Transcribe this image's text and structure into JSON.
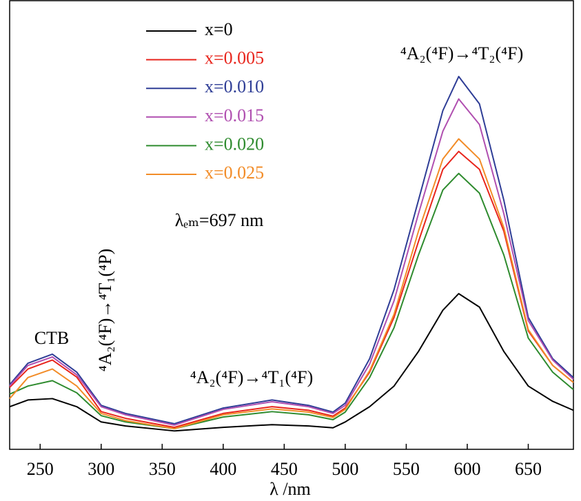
{
  "chart_data": {
    "type": "line",
    "x": [
      225,
      240,
      260,
      280,
      300,
      320,
      360,
      400,
      440,
      470,
      490,
      500,
      520,
      540,
      560,
      580,
      593,
      610,
      630,
      650,
      670,
      687
    ],
    "series": [
      {
        "name": "x=0",
        "color": "#000000",
        "values": [
          9.5,
          11,
          11.3,
          9.5,
          6.1,
          5.2,
          4.1,
          4.9,
          5.5,
          5.2,
          4.8,
          6.1,
          9.5,
          14.1,
          21.8,
          31,
          34.7,
          31.7,
          21.8,
          14.1,
          10.7,
          8.7
        ]
      },
      {
        "name": "x=0.005",
        "color": "#e8251c",
        "values": [
          13.8,
          17.9,
          19.9,
          16.1,
          8.4,
          6.9,
          4.9,
          8,
          9.5,
          8.7,
          7.4,
          9.2,
          17.2,
          29.4,
          46.3,
          62.4,
          66.4,
          62.4,
          48.6,
          26.4,
          18.7,
          14.9
        ]
      },
      {
        "name": "x=0.010",
        "color": "#2e3d96",
        "values": [
          14.4,
          19.2,
          21.2,
          17.2,
          9.8,
          8,
          5.7,
          9.2,
          11,
          9.8,
          8.3,
          10.3,
          20.2,
          35.6,
          55.5,
          75.5,
          83.1,
          77,
          55.5,
          29.4,
          20.2,
          16
        ]
      },
      {
        "name": "x=0.015",
        "color": "#b04fb0",
        "values": [
          14.1,
          18.7,
          20.6,
          16.6,
          9.5,
          7.7,
          5.4,
          8.9,
          10.6,
          9.5,
          8,
          9.8,
          19,
          33.1,
          52.5,
          70.9,
          78.1,
          72.4,
          52.5,
          28.7,
          19.9,
          15.6
        ]
      },
      {
        "name": "x=0.020",
        "color": "#2e8b2e",
        "values": [
          12.3,
          14.1,
          15.3,
          12.6,
          7.5,
          6.1,
          4.6,
          7.2,
          8.4,
          7.7,
          6.6,
          8.3,
          16,
          27.1,
          43.3,
          57.8,
          61.5,
          57.1,
          43.3,
          24.8,
          17.2,
          13.3
        ]
      },
      {
        "name": "x=0.025",
        "color": "#f28c28",
        "values": [
          11.3,
          16,
          17.9,
          14.1,
          8,
          6.4,
          4.6,
          7.7,
          9,
          8.3,
          7.1,
          8.9,
          17.5,
          30.1,
          48.6,
          64.7,
          69.2,
          64.7,
          49.4,
          26.7,
          18.7,
          14.9
        ]
      }
    ],
    "xlim": [
      225,
      687
    ],
    "ylim": [
      0,
      100
    ],
    "xticks": [
      250,
      300,
      350,
      400,
      450,
      500,
      550,
      600,
      650
    ],
    "x_label": "λ /nm",
    "annotations": [
      "⁴A₂(⁴F)→⁴T₂(⁴F)",
      "CTB",
      "⁴A₂(⁴F)→⁴T₁(⁴P)",
      "⁴A₂(⁴F)→⁴T₁(⁴F)",
      "λₑₘ=697 nm"
    ]
  }
}
